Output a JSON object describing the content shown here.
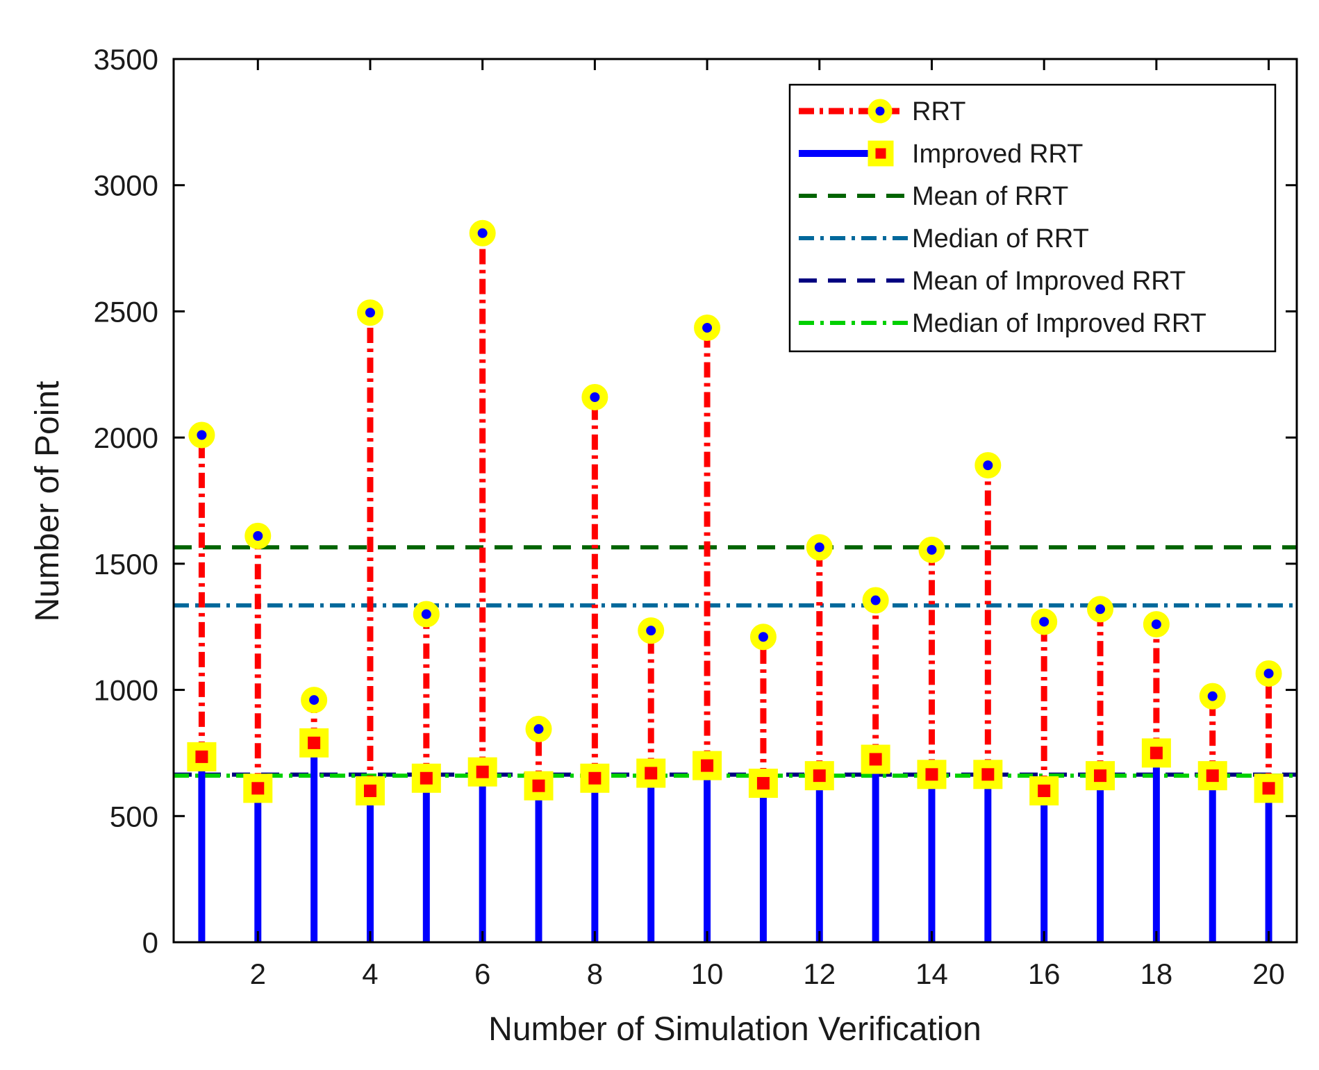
{
  "chart_data": {
    "type": "stem",
    "xlabel": "Number of Simulation Verification",
    "ylabel": "Number of Point",
    "xlim": [
      0.5,
      20.5
    ],
    "ylim": [
      0,
      3500
    ],
    "xticks": [
      2,
      4,
      6,
      8,
      10,
      12,
      14,
      16,
      18,
      20
    ],
    "yticks": [
      0,
      500,
      1000,
      1500,
      2000,
      2500,
      3000,
      3500
    ],
    "grid": false,
    "legend_position": "top-right",
    "x": [
      1,
      2,
      3,
      4,
      5,
      6,
      7,
      8,
      9,
      10,
      11,
      12,
      13,
      14,
      15,
      16,
      17,
      18,
      19,
      20
    ],
    "series": [
      {
        "name": "RRT",
        "style": "stem-dash-dot-circle",
        "line_color": "#ff0000",
        "marker_face": "#0000ff",
        "marker_edge": "#ffff00",
        "values": [
          2010,
          1610,
          960,
          2495,
          1300,
          2810,
          845,
          2160,
          1235,
          2435,
          1210,
          1565,
          1355,
          1555,
          1890,
          1270,
          1320,
          1260,
          975,
          1065
        ]
      },
      {
        "name": "Improved RRT",
        "style": "stem-solid-square",
        "line_color": "#0000ff",
        "marker_face": "#ff0000",
        "marker_edge": "#ffff00",
        "values": [
          735,
          610,
          790,
          600,
          650,
          675,
          620,
          650,
          670,
          700,
          630,
          660,
          725,
          665,
          665,
          600,
          660,
          750,
          660,
          610
        ]
      }
    ],
    "reference_lines": [
      {
        "name": "Mean of RRT",
        "y": 1565,
        "color": "#006400",
        "dash": "dashed"
      },
      {
        "name": "Median of RRT",
        "y": 1335,
        "color": "#00689b",
        "dash": "dash-dot"
      },
      {
        "name": "Mean of Improved RRT",
        "y": 664,
        "color": "#000080",
        "dash": "dashed"
      },
      {
        "name": "Median of Improved RRT",
        "y": 660,
        "color": "#00d000",
        "dash": "dash-dot"
      }
    ]
  }
}
